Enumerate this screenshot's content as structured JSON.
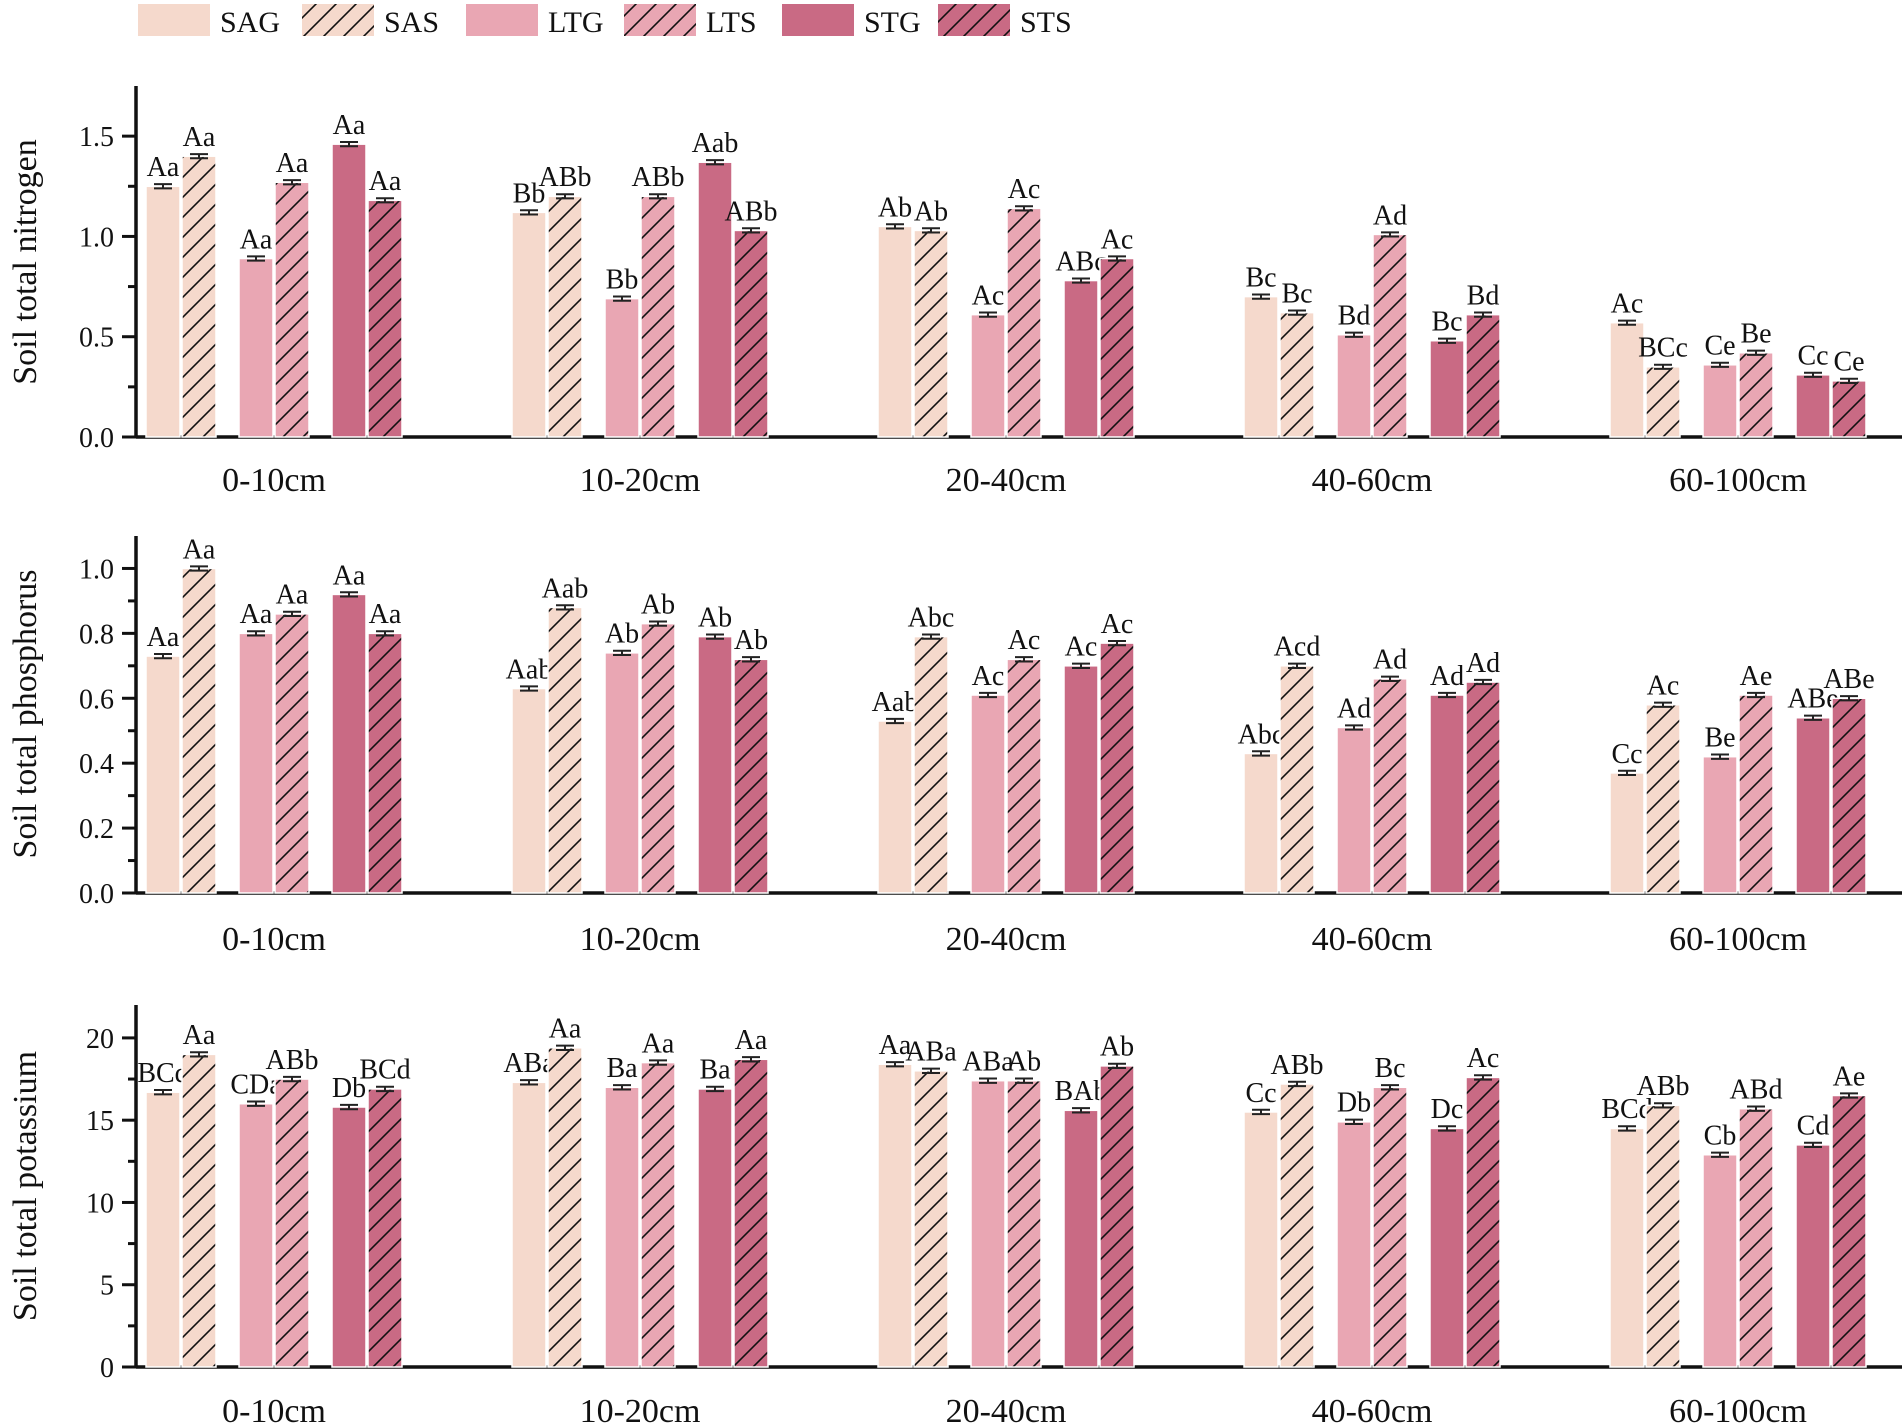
{
  "chart_data": [
    {
      "type": "bar",
      "ylabel": "Soil total nitrogen",
      "ylim": [
        0,
        1.75
      ],
      "yticks": [
        "0.0",
        "0.5",
        "1.0",
        "1.5"
      ],
      "categories": [
        "0-10cm",
        "10-20cm",
        "20-40cm",
        "40-60cm",
        "60-100cm"
      ],
      "series": [
        {
          "name": "SAG",
          "values": [
            1.25,
            1.12,
            1.05,
            0.7,
            0.57
          ],
          "labels": [
            "Aa",
            "Bb",
            "Ab",
            "Bc",
            "Ac"
          ]
        },
        {
          "name": "SAS",
          "values": [
            1.4,
            1.2,
            1.03,
            0.62,
            0.35
          ],
          "labels": [
            "Aa",
            "ABb",
            "Ab",
            "Bc",
            "BCc"
          ]
        },
        {
          "name": "LTG",
          "values": [
            0.89,
            0.69,
            0.61,
            0.51,
            0.36
          ],
          "labels": [
            "Aa",
            "Bb",
            "Ac",
            "Bd",
            "Ce"
          ]
        },
        {
          "name": "LTS",
          "values": [
            1.27,
            1.2,
            1.14,
            1.01,
            0.42
          ],
          "labels": [
            "Aa",
            "ABb",
            "Ac",
            "Ad",
            "Be"
          ]
        },
        {
          "name": "STG",
          "values": [
            1.46,
            1.37,
            0.78,
            0.48,
            0.31
          ],
          "labels": [
            "Aa",
            "Aab",
            "ABc",
            "Bc",
            "Cc"
          ]
        },
        {
          "name": "STS",
          "values": [
            1.18,
            1.03,
            0.89,
            0.61,
            0.28
          ],
          "labels": [
            "Aa",
            "ABb",
            "Ac",
            "Bd",
            "Ce"
          ]
        }
      ]
    },
    {
      "type": "bar",
      "ylabel": "Soil total phosphorus",
      "ylim": [
        0,
        1.1
      ],
      "yticks": [
        "0.0",
        "0.2",
        "0.4",
        "0.6",
        "0.8",
        "1.0"
      ],
      "categories": [
        "0-10cm",
        "10-20cm",
        "20-40cm",
        "40-60cm",
        "60-100cm"
      ],
      "series": [
        {
          "name": "SAG",
          "values": [
            0.73,
            0.63,
            0.53,
            0.43,
            0.37
          ],
          "labels": [
            "Aa",
            "Aab",
            "Aab",
            "Abc",
            "Cc"
          ]
        },
        {
          "name": "SAS",
          "values": [
            1.0,
            0.88,
            0.79,
            0.7,
            0.58
          ],
          "labels": [
            "Aa",
            "Aab",
            "Abc",
            "Acd",
            "Ac"
          ]
        },
        {
          "name": "LTG",
          "values": [
            0.8,
            0.74,
            0.61,
            0.51,
            0.42
          ],
          "labels": [
            "Aa",
            "Ab",
            "Ac",
            "Ad",
            "Be"
          ]
        },
        {
          "name": "LTS",
          "values": [
            0.86,
            0.83,
            0.72,
            0.66,
            0.61
          ],
          "labels": [
            "Aa",
            "Ab",
            "Ac",
            "Ad",
            "Ae"
          ]
        },
        {
          "name": "STG",
          "values": [
            0.92,
            0.79,
            0.7,
            0.61,
            0.54
          ],
          "labels": [
            "Aa",
            "Ab",
            "Ac",
            "Ad",
            "ABe"
          ]
        },
        {
          "name": "STS",
          "values": [
            0.8,
            0.72,
            0.77,
            0.65,
            0.6
          ],
          "labels": [
            "Aa",
            "Ab",
            "Ac",
            "Ad",
            "ABe"
          ]
        }
      ]
    },
    {
      "type": "bar",
      "ylabel": "Soil total potassium",
      "ylim": [
        0,
        22
      ],
      "yticks": [
        "0",
        "5",
        "10",
        "15",
        "20"
      ],
      "categories": [
        "0-10cm",
        "10-20cm",
        "20-40cm",
        "40-60cm",
        "60-100cm"
      ],
      "series": [
        {
          "name": "SAG",
          "values": [
            16.7,
            17.3,
            18.4,
            15.5,
            14.5
          ],
          "labels": [
            "BCd",
            "ABa",
            "Aa",
            "Cc",
            "BCd"
          ]
        },
        {
          "name": "SAS",
          "values": [
            19.0,
            19.4,
            18.0,
            17.2,
            15.9
          ],
          "labels": [
            "Aa",
            "Aa",
            "ABa",
            "ABb",
            "ABb"
          ]
        },
        {
          "name": "LTG",
          "values": [
            16.0,
            17.0,
            17.4,
            14.9,
            12.9
          ],
          "labels": [
            "CDa",
            "Ba",
            "ABa",
            "Db",
            "Cb"
          ]
        },
        {
          "name": "LTS",
          "values": [
            17.5,
            18.5,
            17.4,
            17.0,
            15.7
          ],
          "labels": [
            "ABb",
            "Aa",
            "Ab",
            "Bc",
            "ABd"
          ]
        },
        {
          "name": "STG",
          "values": [
            15.8,
            16.9,
            15.6,
            14.5,
            13.5
          ],
          "labels": [
            "Db",
            "Ba",
            "BAb",
            "Dc",
            "Cd"
          ]
        },
        {
          "name": "STS",
          "values": [
            16.9,
            18.7,
            18.3,
            17.6,
            16.5
          ],
          "labels": [
            "BCd",
            "Aa",
            "Ab",
            "Ac",
            "Ae"
          ]
        }
      ]
    }
  ],
  "legend": [
    {
      "name": "SAG",
      "color": "#f5d9cc",
      "hatch": false
    },
    {
      "name": "SAS",
      "color": "#f5d9cc",
      "hatch": true
    },
    {
      "name": "LTG",
      "color": "#e9a6b3",
      "hatch": false
    },
    {
      "name": "LTS",
      "color": "#e9a6b3",
      "hatch": true
    },
    {
      "name": "STG",
      "color": "#c96a84",
      "hatch": false
    },
    {
      "name": "STS",
      "color": "#c96a84",
      "hatch": true
    }
  ]
}
